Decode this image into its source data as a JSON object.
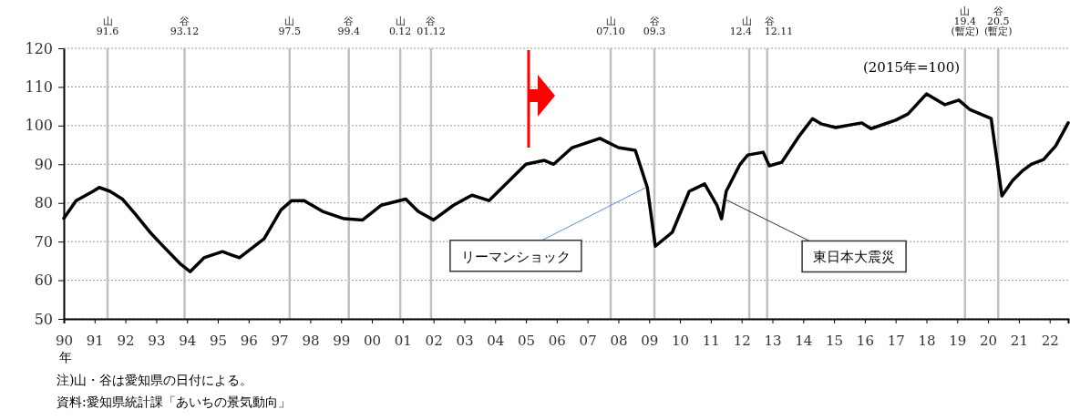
{
  "chart_data": {
    "type": "line",
    "xlabel": "年",
    "x": [
      1990,
      1990.4,
      1990.95,
      1991.15,
      1991.5,
      1991.9,
      1992.3,
      1992.8,
      1993.2,
      1993.8,
      1994.1,
      1994.55,
      1995.15,
      1995.7,
      1996.5,
      1997.05,
      1997.4,
      1997.8,
      1998.4,
      1999.1,
      1999.7,
      2000.3,
      2001.1,
      2001.5,
      2002,
      2002.65,
      2003.25,
      2003.8,
      2004.4,
      2005,
      2005.6,
      2005.9,
      2006.5,
      2007.4,
      2008,
      2008.55,
      2008.94,
      2009.2,
      2009.75,
      2010.3,
      2010.8,
      2011.2,
      2011.35,
      2011.5,
      2011.95,
      2012.2,
      2012.7,
      2012.9,
      2013.3,
      2013.85,
      2014.3,
      2014.6,
      2015.05,
      2015.9,
      2016.2,
      2017,
      2017.4,
      2018,
      2018.6,
      2019.05,
      2019.4,
      2020.1,
      2020.45,
      2020.8,
      2021.1,
      2021.4,
      2021.8,
      2022.2,
      2022.6
    ],
    "series": [
      {
        "color": "#000000",
        "values": [
          76,
          80.6,
          83,
          84,
          83,
          81,
          77.3,
          72.4,
          69,
          64.1,
          62.2,
          65.8,
          67.4,
          65.8,
          70.7,
          78.2,
          80.6,
          80.6,
          77.8,
          75.9,
          75.6,
          79.4,
          81,
          77.8,
          75.6,
          79.4,
          82,
          80.6,
          85.3,
          90,
          91,
          90,
          94.3,
          96.7,
          94.3,
          93.6,
          84,
          68.8,
          72.4,
          83,
          84.9,
          79.4,
          75.9,
          83,
          90,
          92.4,
          93.1,
          89.6,
          90.5,
          97.1,
          101.8,
          100.4,
          99.5,
          100.7,
          99.2,
          101.4,
          103,
          108.2,
          105.4,
          106.6,
          104.2,
          101.8,
          81.8,
          85.8,
          88.2,
          90,
          91.2,
          94.8,
          100.7
        ]
      }
    ],
    "xlim": [
      1990,
      2022.6
    ],
    "xticks": [
      {
        "value": 1990,
        "label": "90"
      },
      {
        "value": 1991,
        "label": "91"
      },
      {
        "value": 1992,
        "label": "92"
      },
      {
        "value": 1993,
        "label": "93"
      },
      {
        "value": 1994,
        "label": "94"
      },
      {
        "value": 1995,
        "label": "95"
      },
      {
        "value": 1996,
        "label": "96"
      },
      {
        "value": 1997,
        "label": "97"
      },
      {
        "value": 1998,
        "label": "98"
      },
      {
        "value": 1999,
        "label": "99"
      },
      {
        "value": 2000,
        "label": "00"
      },
      {
        "value": 2001,
        "label": "01"
      },
      {
        "value": 2002,
        "label": "02"
      },
      {
        "value": 2003,
        "label": "03"
      },
      {
        "value": 2004,
        "label": "04"
      },
      {
        "value": 2005,
        "label": "05"
      },
      {
        "value": 2006,
        "label": "06"
      },
      {
        "value": 2007,
        "label": "07"
      },
      {
        "value": 2008,
        "label": "08"
      },
      {
        "value": 2009,
        "label": "09"
      },
      {
        "value": 2010,
        "label": "10"
      },
      {
        "value": 2011,
        "label": "11"
      },
      {
        "value": 2012,
        "label": "12"
      },
      {
        "value": 2013,
        "label": "13"
      },
      {
        "value": 2014,
        "label": "14"
      },
      {
        "value": 2015,
        "label": "15"
      },
      {
        "value": 2016,
        "label": "16"
      },
      {
        "value": 2017,
        "label": "17"
      },
      {
        "value": 2018,
        "label": "18"
      },
      {
        "value": 2019,
        "label": "19"
      },
      {
        "value": 2020,
        "label": "20"
      },
      {
        "value": 2021,
        "label": "21"
      },
      {
        "value": 2022,
        "label": "22"
      }
    ],
    "ylim": [
      50,
      120
    ],
    "yticks": [
      50,
      60,
      70,
      80,
      90,
      100,
      110,
      120
    ],
    "grid": "y",
    "ref_lines": [
      {
        "axis": "x",
        "value": 1991.42,
        "label": "山\n91.6",
        "color": "#c0c0c0"
      },
      {
        "axis": "x",
        "value": 1993.92,
        "label": "谷\n93.12",
        "color": "#c0c0c0"
      },
      {
        "axis": "x",
        "value": 1997.33,
        "label": "山\n97.5",
        "color": "#c0c0c0"
      },
      {
        "axis": "x",
        "value": 1999.25,
        "label": "谷\n99.4",
        "color": "#c0c0c0"
      },
      {
        "axis": "x",
        "value": 2000.92,
        "label": "山\n0.12",
        "color": "#c0c0c0"
      },
      {
        "axis": "x",
        "value": 2001.92,
        "label": "谷\n01.12",
        "color": "#c0c0c0"
      },
      {
        "axis": "x",
        "value": 2007.75,
        "label": "山\n07.10",
        "color": "#c0c0c0"
      },
      {
        "axis": "x",
        "value": 2009.17,
        "label": "谷\n09.3",
        "color": "#c0c0c0"
      },
      {
        "axis": "x",
        "value": 2012.25,
        "label": "山\n12.4",
        "color": "#c0c0c0"
      },
      {
        "axis": "x",
        "value": 2012.83,
        "label": "谷\n12.11",
        "color": "#c0c0c0"
      },
      {
        "axis": "x",
        "value": 2019.25,
        "label": "山\n19.4\n(暫定)",
        "color": "#c0c0c0"
      },
      {
        "axis": "x",
        "value": 2020.33,
        "label": "谷\n20.5\n(暫定)",
        "color": "#c0c0c0"
      }
    ],
    "annotations": [
      "(2015年=100)",
      {
        "text": "リーマンショック",
        "x": 2008.9,
        "y": 84
      },
      {
        "text": "東日本大震災",
        "x": 2011.45,
        "y": 81
      },
      "注)山・谷は愛知県の日付による。",
      "資料:愛知県統計課「あいちの景気動向」"
    ]
  }
}
